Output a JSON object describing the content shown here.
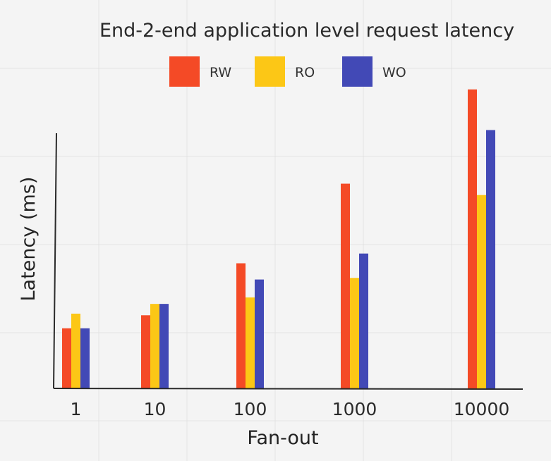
{
  "chart_data": {
    "type": "bar",
    "title": "End-2-end application level request latency",
    "xlabel": "Fan-out",
    "ylabel": "Latency (ms)",
    "categories": [
      "1",
      "10",
      "100",
      "1000",
      "10000"
    ],
    "series": [
      {
        "name": "RW",
        "color": "#f44a26",
        "values": [
          3.7,
          4.5,
          7.7,
          12.6,
          18.4
        ]
      },
      {
        "name": "RO",
        "color": "#fcc716",
        "values": [
          4.6,
          5.2,
          5.6,
          6.8,
          11.9
        ]
      },
      {
        "name": "WO",
        "color": "#4249b6",
        "values": [
          3.7,
          5.2,
          6.7,
          8.3,
          15.9
        ]
      }
    ],
    "ylim": [
      0,
      20
    ],
    "grid": true,
    "legend": "top-center"
  }
}
